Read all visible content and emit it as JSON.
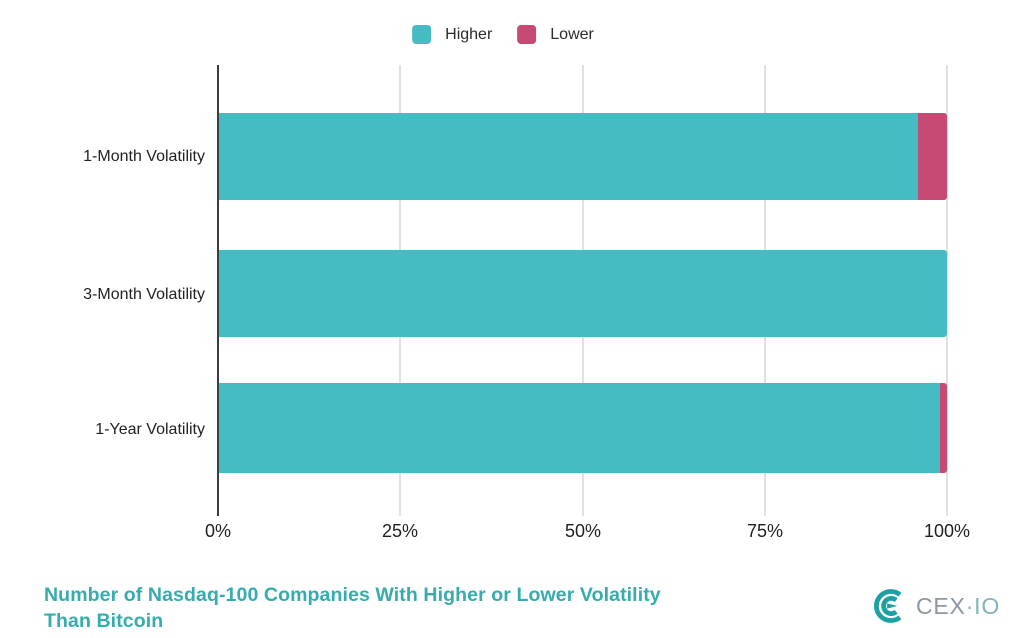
{
  "legend": {
    "items": [
      {
        "label": "Higher",
        "color": "#45BCC4"
      },
      {
        "label": "Lower",
        "color": "#C64A73"
      }
    ]
  },
  "chart_data": {
    "type": "bar",
    "orientation": "horizontal",
    "stacked": true,
    "units": "percent_of_companies",
    "title": "Number of Nasdaq-100 Companies With Higher or Lower Volatility Than Bitcoin",
    "categories": [
      "1-Month Volatility",
      "3-Month Volatility",
      "1-Year Volatility"
    ],
    "series": [
      {
        "name": "Higher",
        "color": "#45BCC4",
        "values": [
          96,
          100,
          99
        ]
      },
      {
        "name": "Lower",
        "color": "#C64A73",
        "values": [
          4,
          0,
          1
        ]
      }
    ],
    "x_ticks": [
      "0%",
      "25%",
      "50%",
      "75%",
      "100%"
    ],
    "xlim": [
      0,
      100
    ],
    "grid": "vertical",
    "legend_position": "top"
  },
  "title": {
    "lines": [
      "Number of Nasdaq-100 Companies With Higher or Lower Volatility",
      "Than Bitcoin"
    ],
    "color": "#35ACAE"
  },
  "logo": {
    "primary": "CEX",
    "separator": "·",
    "secondary": "IO",
    "primary_color": "#8B97A2",
    "secondary_color": "#7FB4BA",
    "icon_color": "#1BA0A4"
  }
}
